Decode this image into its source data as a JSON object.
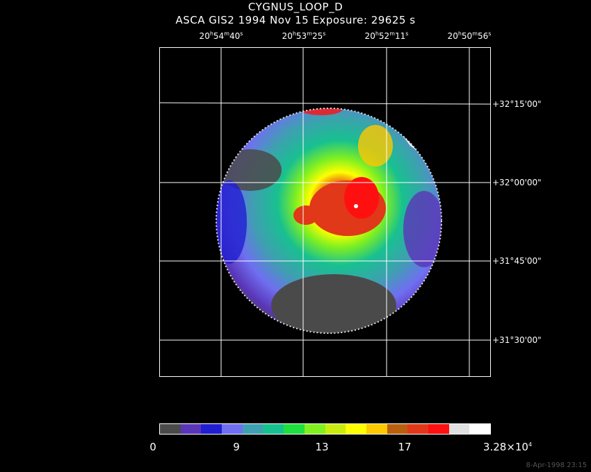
{
  "title": {
    "line1": "CYGNUS_LOOP_D",
    "line2": "ASCA GIS2    1994 Nov 15    Exposure: 29625 s"
  },
  "ra_labels": [
    {
      "h": "20",
      "m": "54",
      "s": "40"
    },
    {
      "h": "20",
      "m": "53",
      "s": "25"
    },
    {
      "h": "20",
      "m": "52",
      "s": "11"
    },
    {
      "h": "20",
      "m": "50",
      "s": "56"
    }
  ],
  "dec_labels": [
    "+32°15'00\"",
    "+32°00'00\"",
    "+31°45'00\"",
    "+31°30'00\""
  ],
  "colorbar": {
    "colors": [
      "#4a4a4a",
      "#5a35b8",
      "#1f1fd0",
      "#6f6ff0",
      "#3ea0b0",
      "#18c090",
      "#20e040",
      "#80f020",
      "#c8ec10",
      "#ffff00",
      "#ffc800",
      "#b86010",
      "#e03818",
      "#ff1010",
      "#e0e0e0",
      "#ffffff"
    ],
    "labels": [
      "0",
      "9",
      "13",
      "17",
      "3.28×10"
    ],
    "exponent": "4"
  },
  "stamp": "8-Apr-1998 23:15"
}
